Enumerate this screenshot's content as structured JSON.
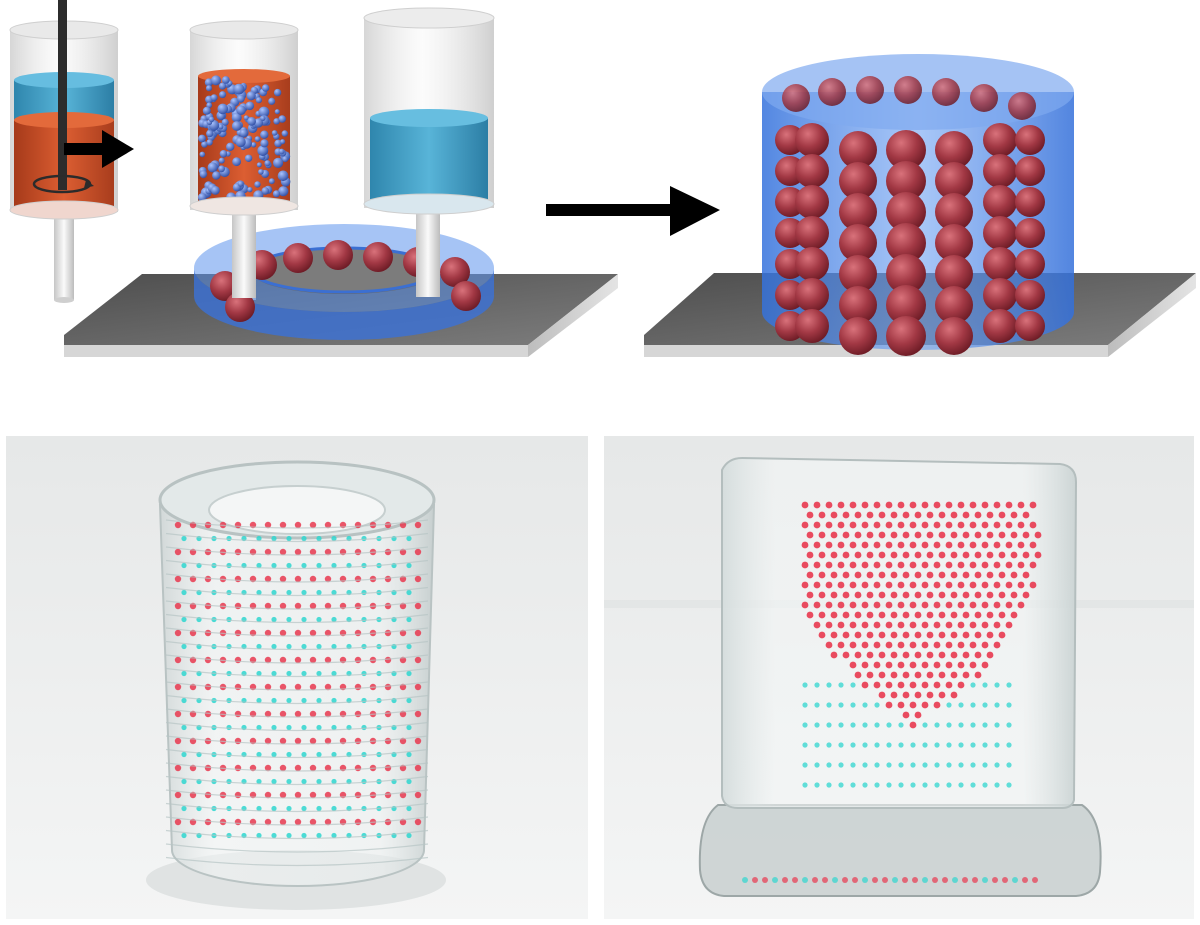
{
  "figure": {
    "top_row": {
      "step1_mixing_syringe": {
        "fluid_color": "#d2562c",
        "cap_color": "#4aa6cc"
      },
      "step2_emulsion_syringe": {
        "fluid_color": "#d2562c",
        "bead_color": "#5a7fd0"
      },
      "step3_matrix_syringe": {
        "fluid_color": "#3a9cc4"
      },
      "ring_print": {
        "matrix_color": "#3c7fe6",
        "bead_color": "#9e3540",
        "plate_color": "#5f5f5f"
      },
      "arrow": {
        "color": "#000000"
      },
      "cylinder_print": {
        "matrix_color": "#3c7fe6",
        "bead_color": "#9e3540",
        "plate_color": "#5f5f5f"
      }
    },
    "bottom_row": {
      "photo_tube": {
        "background": "#eeeeee",
        "dot_colors": [
          "#e8384f",
          "#2fd6cf"
        ]
      },
      "photo_cube": {
        "background": "#eeeeee",
        "dot_colors": [
          "#e8384f",
          "#2fd6cf"
        ]
      }
    }
  }
}
